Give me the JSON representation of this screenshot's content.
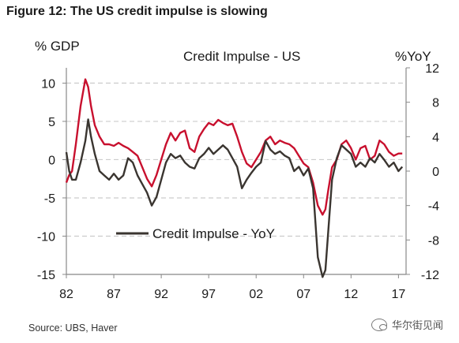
{
  "figure_title": "Figure 12: The US credit impulse is slowing",
  "source": "Source:  UBS, Haver",
  "watermark": "华尔街见闻",
  "colors": {
    "credit_impulse": "#c8102e",
    "credit_impulse_yoy": "#3a3530",
    "grid": "#cccccc",
    "axis": "#888888"
  },
  "chart_data": {
    "type": "line",
    "title": "Credit Impulse - US",
    "ylabel_left": "% GDP",
    "ylabel_right": "%YoY",
    "ylim_left": [
      -15,
      12
    ],
    "ylim_right": [
      -12,
      12
    ],
    "yticks_left": [
      10,
      5,
      0,
      -5,
      -10,
      -15
    ],
    "yticks_right": [
      12,
      8,
      4,
      0,
      -4,
      -8,
      -12
    ],
    "xlim": [
      1982,
      2017.8
    ],
    "xticks": [
      1982,
      1987,
      1992,
      1997,
      2002,
      2007,
      2012,
      2017
    ],
    "xtick_labels": [
      "82",
      "87",
      "92",
      "97",
      "02",
      "07",
      "12",
      "17"
    ],
    "grid": "horizontal dashed",
    "legend": "lower-left",
    "series": [
      {
        "name": "",
        "axis": "left",
        "color": "#c8102e",
        "x": [
          1982,
          1982.3,
          1982.6,
          1983,
          1983.5,
          1984,
          1984.3,
          1984.6,
          1985,
          1985.5,
          1986,
          1986.5,
          1987,
          1987.5,
          1988,
          1988.5,
          1989,
          1989.5,
          1990,
          1990.5,
          1991,
          1991.5,
          1992,
          1992.5,
          1993,
          1993.5,
          1994,
          1994.5,
          1995,
          1995.5,
          1996,
          1996.5,
          1997,
          1997.5,
          1998,
          1998.5,
          1999,
          1999.5,
          2000,
          2000.5,
          2001,
          2001.5,
          2002,
          2002.5,
          2003,
          2003.5,
          2004,
          2004.5,
          2005,
          2005.5,
          2006,
          2006.5,
          2007,
          2007.5,
          2008,
          2008.5,
          2009,
          2009.3,
          2009.6,
          2010,
          2010.5,
          2011,
          2011.5,
          2012,
          2012.5,
          2013,
          2013.5,
          2014,
          2014.5,
          2015,
          2015.5,
          2016,
          2016.5,
          2017,
          2017.4
        ],
        "y": [
          -3,
          -2,
          -1.5,
          2,
          7,
          10.5,
          9.5,
          7,
          4.5,
          3,
          2,
          2,
          1.8,
          2.2,
          1.8,
          1.5,
          1,
          0.5,
          -1,
          -2.5,
          -3.5,
          -2,
          0,
          2,
          3.5,
          2.5,
          3.5,
          3.8,
          1.5,
          1,
          3,
          4,
          4.8,
          4.5,
          5.2,
          4.8,
          4.5,
          4.7,
          3,
          1,
          -0.5,
          -1,
          0,
          1,
          2.5,
          3,
          2,
          2.5,
          2.2,
          2,
          1.5,
          0.5,
          -0.5,
          -1,
          -3,
          -6,
          -7.2,
          -6.5,
          -4,
          -1,
          0,
          2,
          2.5,
          1.5,
          0,
          1.5,
          1.8,
          0,
          0.5,
          2.5,
          2,
          1,
          0.5,
          0.8,
          0.8
        ]
      },
      {
        "name": "Credit Impulse - YoY",
        "axis": "right",
        "color": "#3a3530",
        "x": [
          1982,
          1982.3,
          1982.6,
          1983,
          1983.5,
          1984,
          1984.3,
          1984.6,
          1985,
          1985.5,
          1986,
          1986.5,
          1987,
          1987.5,
          1988,
          1988.5,
          1989,
          1989.5,
          1990,
          1990.5,
          1991,
          1991.5,
          1992,
          1992.5,
          1993,
          1993.5,
          1994,
          1994.5,
          1995,
          1995.5,
          1996,
          1996.5,
          1997,
          1997.5,
          1998,
          1998.5,
          1999,
          1999.5,
          2000,
          2000.5,
          2001,
          2001.5,
          2002,
          2002.5,
          2003,
          2003.5,
          2004,
          2004.5,
          2005,
          2005.5,
          2006,
          2006.5,
          2007,
          2007.5,
          2008,
          2008.5,
          2009,
          2009.3,
          2009.6,
          2010,
          2010.5,
          2011,
          2011.5,
          2012,
          2012.5,
          2013,
          2013.5,
          2014,
          2014.5,
          2015,
          2015.5,
          2016,
          2016.5,
          2017,
          2017.4
        ],
        "y": [
          2.2,
          0,
          -1,
          -1,
          1,
          3.5,
          6,
          4,
          2,
          0,
          -0.5,
          -1,
          -0.3,
          -1,
          -0.5,
          1.5,
          1,
          -0.5,
          -1.5,
          -2.5,
          -4,
          -3,
          -1,
          1,
          2,
          1.5,
          1.8,
          1,
          0.5,
          0.3,
          1.5,
          2,
          2.7,
          2,
          2.5,
          3,
          2.5,
          1.5,
          0.5,
          -2,
          -1,
          -0.2,
          0.5,
          1,
          3.5,
          2.5,
          2,
          2.3,
          1.8,
          1.5,
          0,
          0.5,
          -0.5,
          0.3,
          -2,
          -10,
          -12.3,
          -11.5,
          -7,
          -1,
          1.5,
          3,
          2.5,
          2,
          0.5,
          1,
          0.5,
          1.5,
          1,
          2,
          1.3,
          0.5,
          1,
          0,
          0.5
        ]
      }
    ]
  }
}
